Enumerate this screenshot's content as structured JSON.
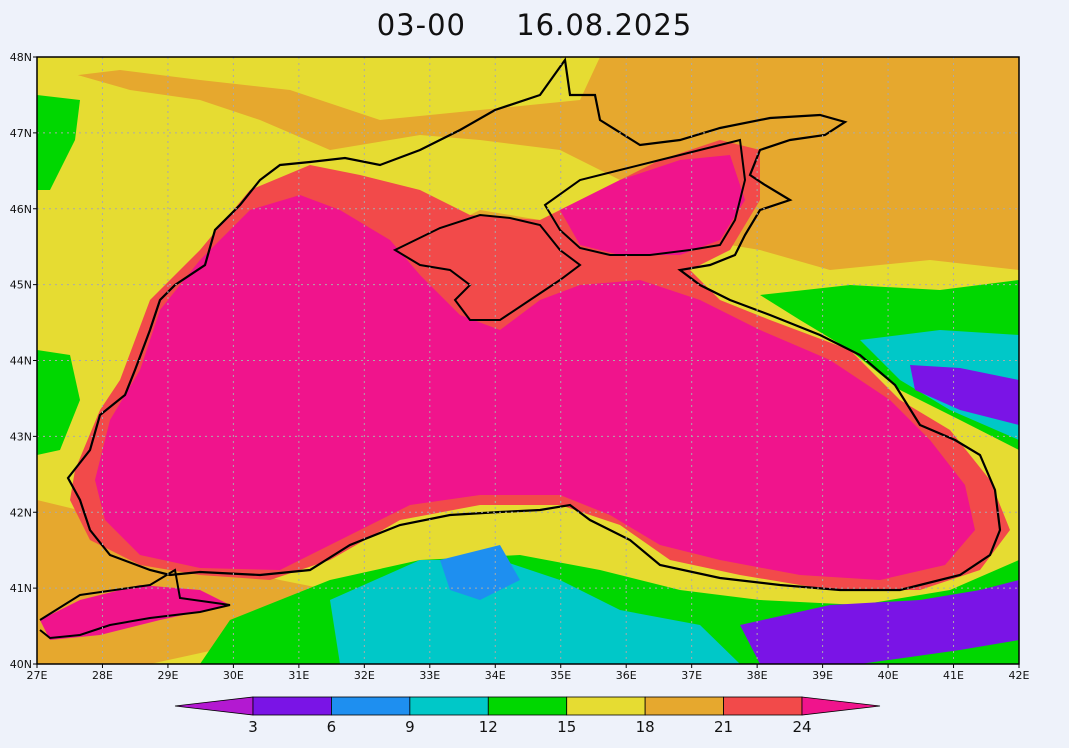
{
  "title": {
    "time": "03-00",
    "date": "16.08.2025"
  },
  "map": {
    "lon_range": [
      27,
      42
    ],
    "lat_range": [
      40,
      48
    ],
    "lon_ticks": [
      "27E",
      "28E",
      "29E",
      "30E",
      "31E",
      "32E",
      "33E",
      "34E",
      "35E",
      "36E",
      "37E",
      "38E",
      "39E",
      "40E",
      "41E",
      "42E"
    ],
    "lat_ticks": [
      "40N",
      "41N",
      "42N",
      "43N",
      "44N",
      "45N",
      "46N",
      "47N",
      "48N"
    ],
    "grid": true
  },
  "colorbar": {
    "labels": [
      "3",
      "6",
      "9",
      "12",
      "15",
      "18",
      "21",
      "24"
    ],
    "colors": [
      "#b319d1",
      "#7a14e6",
      "#1e8ff0",
      "#00c8c8",
      "#00d700",
      "#e6dc32",
      "#e6a82e",
      "#f24a4a",
      "#f0148c"
    ]
  }
}
